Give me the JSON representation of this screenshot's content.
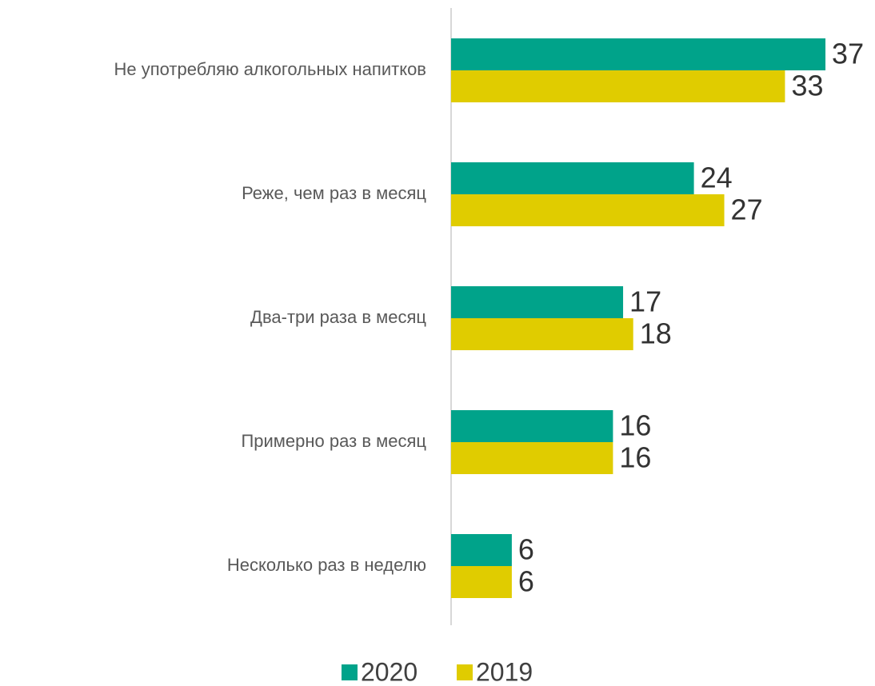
{
  "chart_data": {
    "type": "hbar",
    "categories": [
      "Не употребляю алкогольных напитков",
      "Реже, чем раз в месяц",
      "Два-три раза в месяц",
      "Примерно раз в месяц",
      "Несколько раз в неделю"
    ],
    "series": [
      {
        "name": "2020",
        "color": "#00a38a",
        "values": [
          37,
          24,
          17,
          16,
          6
        ]
      },
      {
        "name": "2019",
        "color": "#e0cc00",
        "values": [
          33,
          27,
          18,
          16,
          6
        ]
      }
    ],
    "legend": "bottom"
  }
}
